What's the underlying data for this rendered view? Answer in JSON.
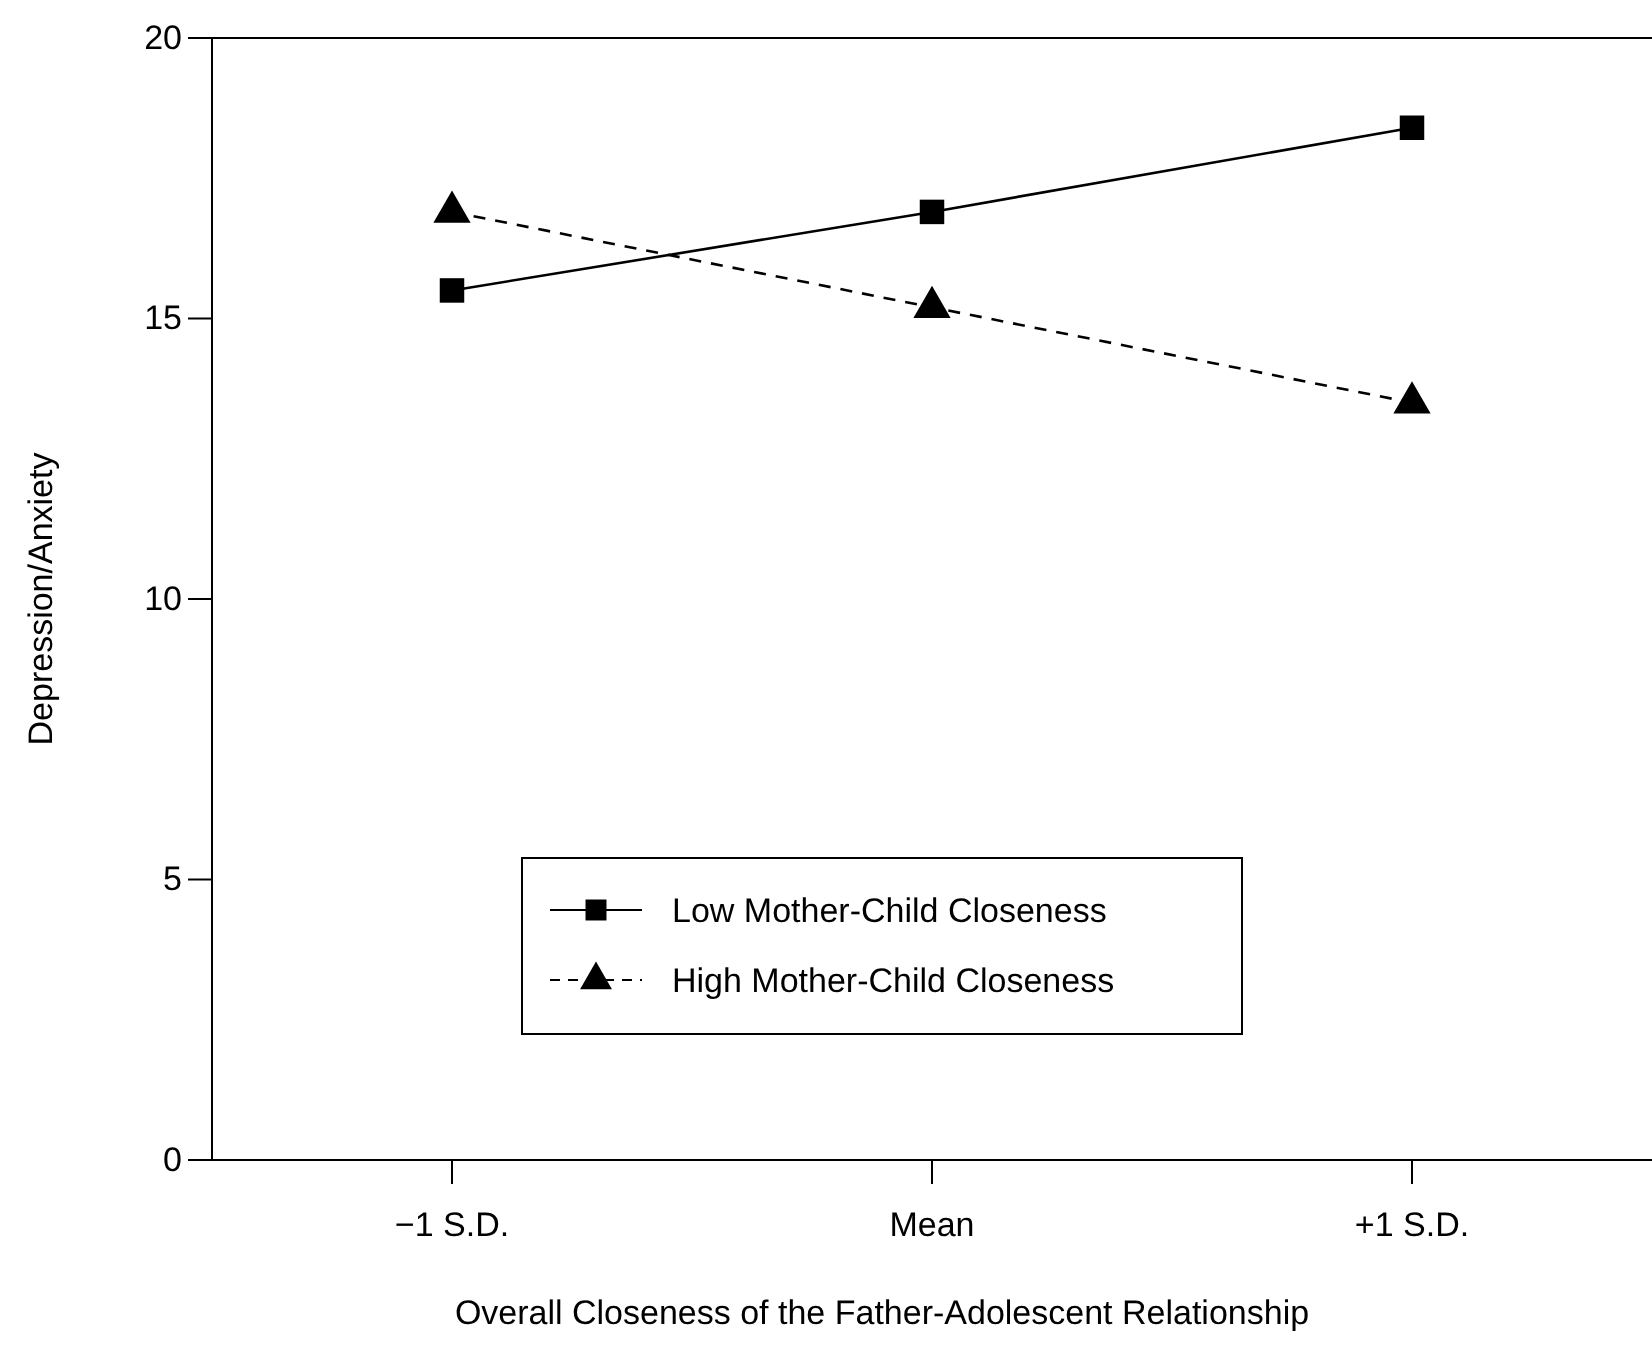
{
  "chart_data": {
    "type": "line",
    "xlabel": "Overall Closeness of the Father-Adolescent Relationship",
    "ylabel": "Depression/Anxiety",
    "categories": [
      "−1 S.D.",
      "Mean",
      "+1 S.D."
    ],
    "series": [
      {
        "name": "Low Mother-Child Closeness",
        "color": "#000000",
        "values": [
          15.5,
          16.9,
          18.4
        ],
        "marker": "square",
        "line_style": "solid"
      },
      {
        "name": "High Mother-Child Closeness",
        "color": "#000000",
        "values": [
          16.9,
          15.2,
          13.5
        ],
        "marker": "triangle",
        "line_style": "dashed"
      }
    ],
    "ylim": [
      0,
      20
    ],
    "yticks": [
      0,
      5,
      10,
      15,
      20
    ],
    "grid": false,
    "legend": "bottom"
  }
}
